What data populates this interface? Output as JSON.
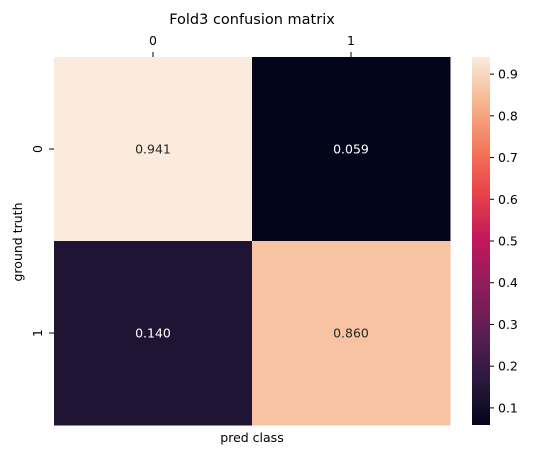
{
  "chart_data": {
    "type": "heatmap",
    "title": "Fold3 confusion matrix",
    "xlabel": "pred class",
    "ylabel": "ground truth",
    "x_categories": [
      "0",
      "1"
    ],
    "y_categories": [
      "0",
      "1"
    ],
    "values": [
      [
        0.941,
        0.059
      ],
      [
        0.14,
        0.86
      ]
    ],
    "value_labels": [
      [
        "0.941",
        "0.059"
      ],
      [
        "0.140",
        "0.860"
      ]
    ],
    "colorbar": {
      "range": [
        0.059,
        0.941
      ],
      "ticks": [
        "0.1",
        "0.2",
        "0.3",
        "0.4",
        "0.5",
        "0.6",
        "0.7",
        "0.8",
        "0.9"
      ],
      "tick_values": [
        0.1,
        0.2,
        0.3,
        0.4,
        0.5,
        0.6,
        0.7,
        0.8,
        0.9
      ],
      "colormap": "rocket"
    },
    "x_tick_position": "top",
    "grid": false
  }
}
